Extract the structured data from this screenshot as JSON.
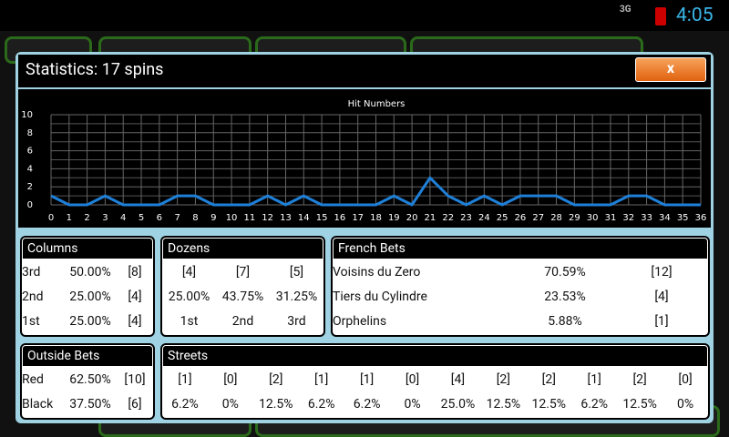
{
  "status_bar": {
    "network": "3G",
    "time": "4:05"
  },
  "dialog": {
    "title": "Statistics: 17 spins",
    "close_label": "x"
  },
  "chart_data": {
    "type": "line",
    "title": "Hit Numbers",
    "categories": [
      0,
      1,
      2,
      3,
      4,
      5,
      6,
      7,
      8,
      9,
      10,
      11,
      12,
      13,
      14,
      15,
      16,
      17,
      18,
      19,
      20,
      21,
      22,
      23,
      24,
      25,
      26,
      27,
      28,
      29,
      30,
      31,
      32,
      33,
      34,
      35,
      36
    ],
    "values": [
      1,
      0,
      0,
      1,
      0,
      0,
      0,
      1,
      1,
      0,
      0,
      0,
      1,
      0,
      1,
      0,
      0,
      0,
      0,
      1,
      0,
      3,
      1,
      0,
      1,
      0,
      1,
      1,
      1,
      0,
      0,
      0,
      1,
      1,
      0,
      0,
      0
    ],
    "color": "#1e80d8",
    "ylim": [
      0,
      10
    ],
    "yticks": [
      0,
      2,
      4,
      6,
      8,
      10
    ],
    "grid": true
  },
  "columns": {
    "title": "Columns",
    "rows": [
      [
        "3rd",
        "50.00%",
        "[8]"
      ],
      [
        "2nd",
        "25.00%",
        "[4]"
      ],
      [
        "1st",
        "25.00%",
        "[4]"
      ]
    ]
  },
  "dozens": {
    "title": "Dozens",
    "rows": [
      [
        "[4]",
        "[7]",
        "[5]"
      ],
      [
        "25.00%",
        "43.75%",
        "31.25%"
      ],
      [
        "1st",
        "2nd",
        "3rd"
      ]
    ]
  },
  "french_bets": {
    "title": "French Bets",
    "rows": [
      [
        "Voisins du Zero",
        "70.59%",
        "[12]"
      ],
      [
        "Tiers du Cylindre",
        "23.53%",
        "[4]"
      ],
      [
        "Orphelins",
        "5.88%",
        "[1]"
      ]
    ]
  },
  "outside_bets": {
    "title": "Outside Bets",
    "rows": [
      [
        "Red",
        "62.50%",
        "[10]"
      ],
      [
        "Black",
        "37.50%",
        "[6]"
      ]
    ]
  },
  "streets": {
    "title": "Streets",
    "rows": [
      [
        "[1]",
        "[0]",
        "[2]",
        "[1]",
        "[1]",
        "[0]",
        "[4]",
        "[2]",
        "[2]",
        "[1]",
        "[2]",
        "[0]"
      ],
      [
        "6.2%",
        "0%",
        "12.5%",
        "6.2%",
        "6.2%",
        "0%",
        "25.0%",
        "12.5%",
        "12.5%",
        "6.2%",
        "12.5%",
        "0%"
      ]
    ]
  }
}
